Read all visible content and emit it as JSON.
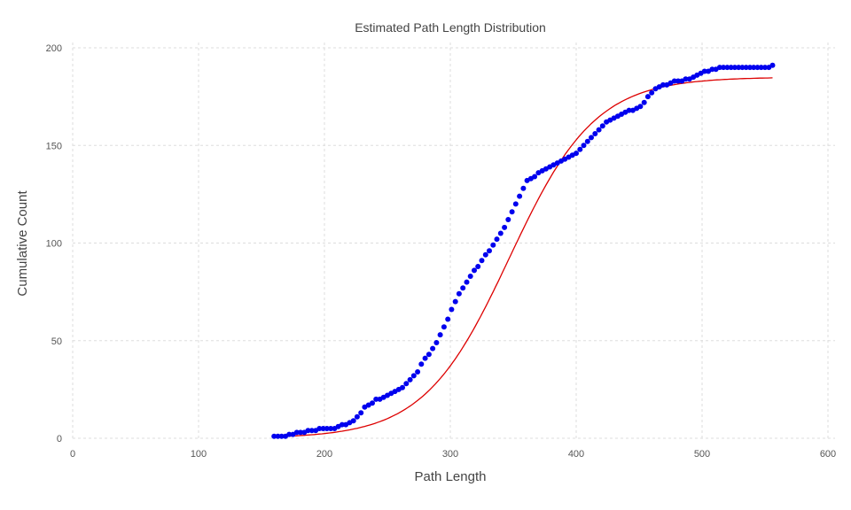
{
  "chart_data": {
    "type": "scatter",
    "title": "Estimated Path Length Distribution",
    "xlabel": "Path Length",
    "ylabel": "Cumulative Count",
    "xlim": [
      0,
      600
    ],
    "ylim": [
      0,
      200
    ],
    "x_ticks": [
      0,
      100,
      200,
      300,
      400,
      500,
      600
    ],
    "y_ticks": [
      0,
      50,
      100,
      150,
      200
    ],
    "grid": true,
    "legend": "none",
    "colors": {
      "points": "#0000ee",
      "fit": "#dd0000"
    },
    "series": [
      {
        "kind": "scatter",
        "x": [
          160,
          163,
          166,
          169,
          172,
          175,
          178,
          181,
          184,
          187,
          190,
          193,
          196,
          199,
          202,
          205,
          208,
          211,
          214,
          217,
          220,
          223,
          226,
          229,
          232,
          235,
          238,
          241,
          244,
          247,
          250,
          253,
          256,
          259,
          262,
          265,
          268,
          271,
          274,
          277,
          280,
          283,
          286,
          289,
          292,
          295,
          298,
          301,
          304,
          307,
          310,
          313,
          316,
          319,
          322,
          325,
          328,
          331,
          334,
          337,
          340,
          343,
          346,
          349,
          352,
          355,
          358,
          361,
          364,
          367,
          370,
          373,
          376,
          379,
          382,
          385,
          388,
          391,
          394,
          397,
          400,
          403,
          406,
          409,
          412,
          415,
          418,
          421,
          424,
          427,
          430,
          433,
          436,
          439,
          442,
          445,
          448,
          451,
          454,
          457,
          460,
          463,
          466,
          469,
          472,
          475,
          478,
          481,
          484,
          487,
          490,
          493,
          496,
          499,
          502,
          505,
          508,
          511,
          514,
          517,
          520,
          523,
          526,
          529,
          532,
          535,
          538,
          541,
          544,
          547,
          550,
          553,
          556
        ],
        "y": [
          1,
          1,
          1,
          1,
          2,
          2,
          3,
          3,
          3,
          4,
          4,
          4,
          5,
          5,
          5,
          5,
          5,
          6,
          7,
          7,
          8,
          9,
          11,
          13,
          16,
          17,
          18,
          20,
          20,
          21,
          22,
          23,
          24,
          25,
          26,
          28,
          30,
          32,
          34,
          38,
          41,
          43,
          46,
          49,
          53,
          57,
          61,
          66,
          70,
          74,
          77,
          80,
          83,
          86,
          88,
          91,
          94,
          96,
          99,
          102,
          105,
          108,
          112,
          116,
          120,
          124,
          128,
          132,
          133,
          134,
          136,
          137,
          138,
          139,
          140,
          141,
          142,
          143,
          144,
          145,
          146,
          148,
          150,
          152,
          154,
          156,
          158,
          160,
          162,
          163,
          164,
          165,
          166,
          167,
          168,
          168,
          169,
          170,
          172,
          175,
          177,
          179,
          180,
          181,
          181,
          182,
          183,
          183,
          183,
          184,
          184,
          185,
          186,
          187,
          188,
          188,
          189,
          189,
          190,
          190,
          190,
          190,
          190,
          190,
          190,
          190,
          190,
          190,
          190,
          190,
          190,
          190,
          191
        ]
      },
      {
        "kind": "line",
        "params": {
          "K": 185,
          "x0": 347,
          "s": 34
        }
      }
    ]
  }
}
